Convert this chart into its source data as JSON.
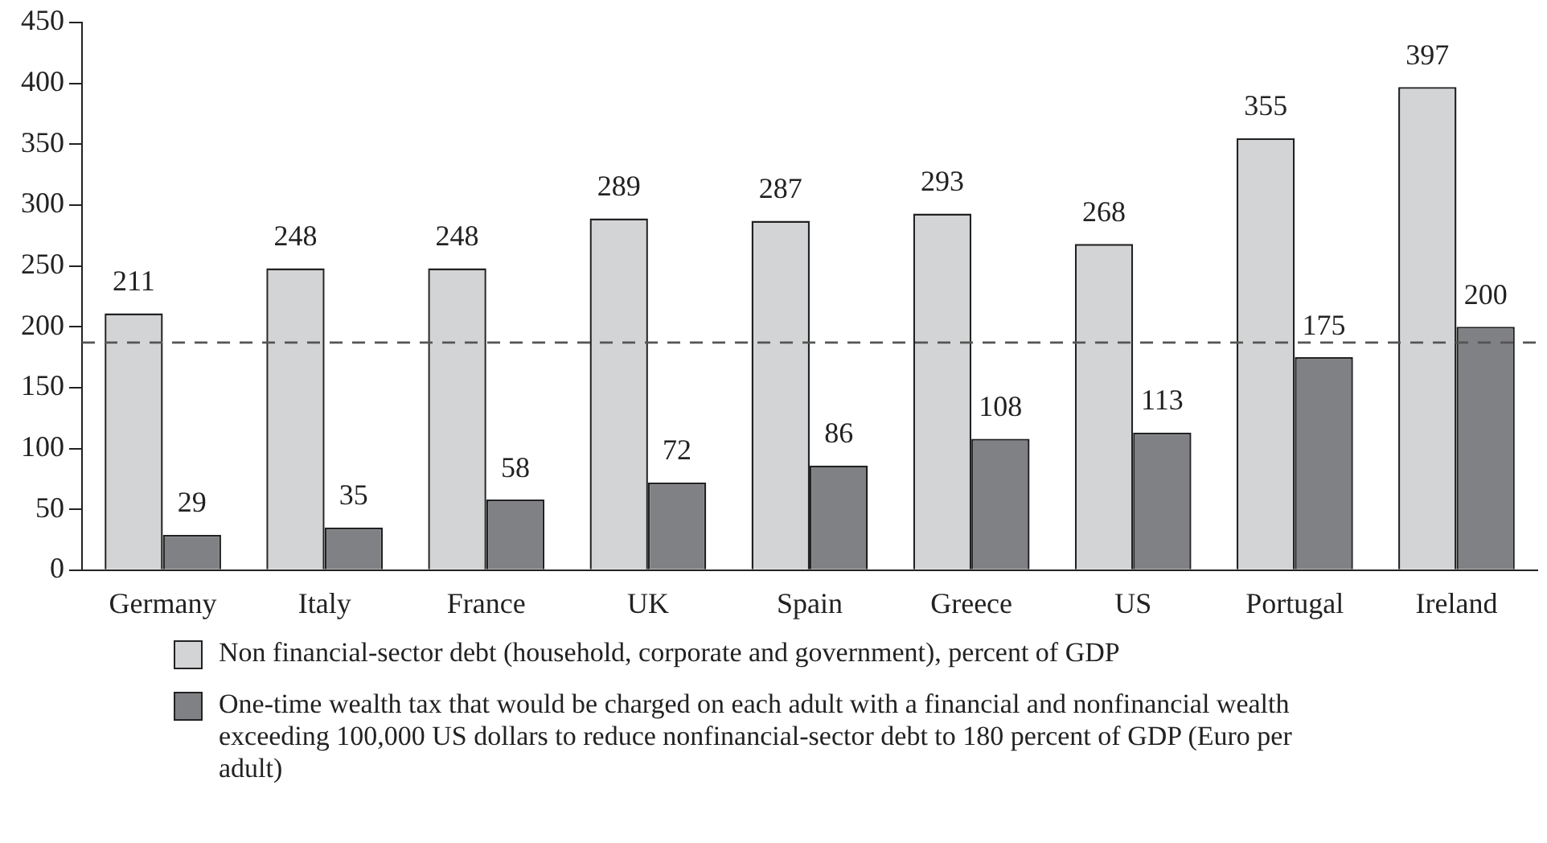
{
  "chart_data": {
    "type": "bar",
    "categories": [
      "Germany",
      "Italy",
      "France",
      "UK",
      "Spain",
      "Greece",
      "US",
      "Portugal",
      "Ireland"
    ],
    "series": [
      {
        "name": "Non financial-sector debt (household, corporate and government), percent of GDP",
        "color": "#d3d4d6",
        "values": [
          211,
          248,
          248,
          289,
          287,
          293,
          268,
          355,
          397
        ]
      },
      {
        "name": "One-time wealth tax that would be charged on each adult with a financial and nonfinancial wealth exceeding 100,000 US dollars to reduce nonfinancial-sector debt to 180 percent of GDP (Euro per adult)",
        "color": "#808184",
        "values": [
          29,
          35,
          58,
          72,
          86,
          108,
          113,
          175,
          200
        ]
      }
    ],
    "ylim": [
      0,
      450
    ],
    "yticks": [
      0,
      50,
      100,
      150,
      200,
      250,
      300,
      350,
      400,
      450
    ],
    "ref_lines": [
      {
        "axis": "y",
        "value": 187,
        "line_style": "dashed",
        "color": "#555555"
      }
    ],
    "data_labels": true,
    "grid": false,
    "legend": "bottom"
  }
}
